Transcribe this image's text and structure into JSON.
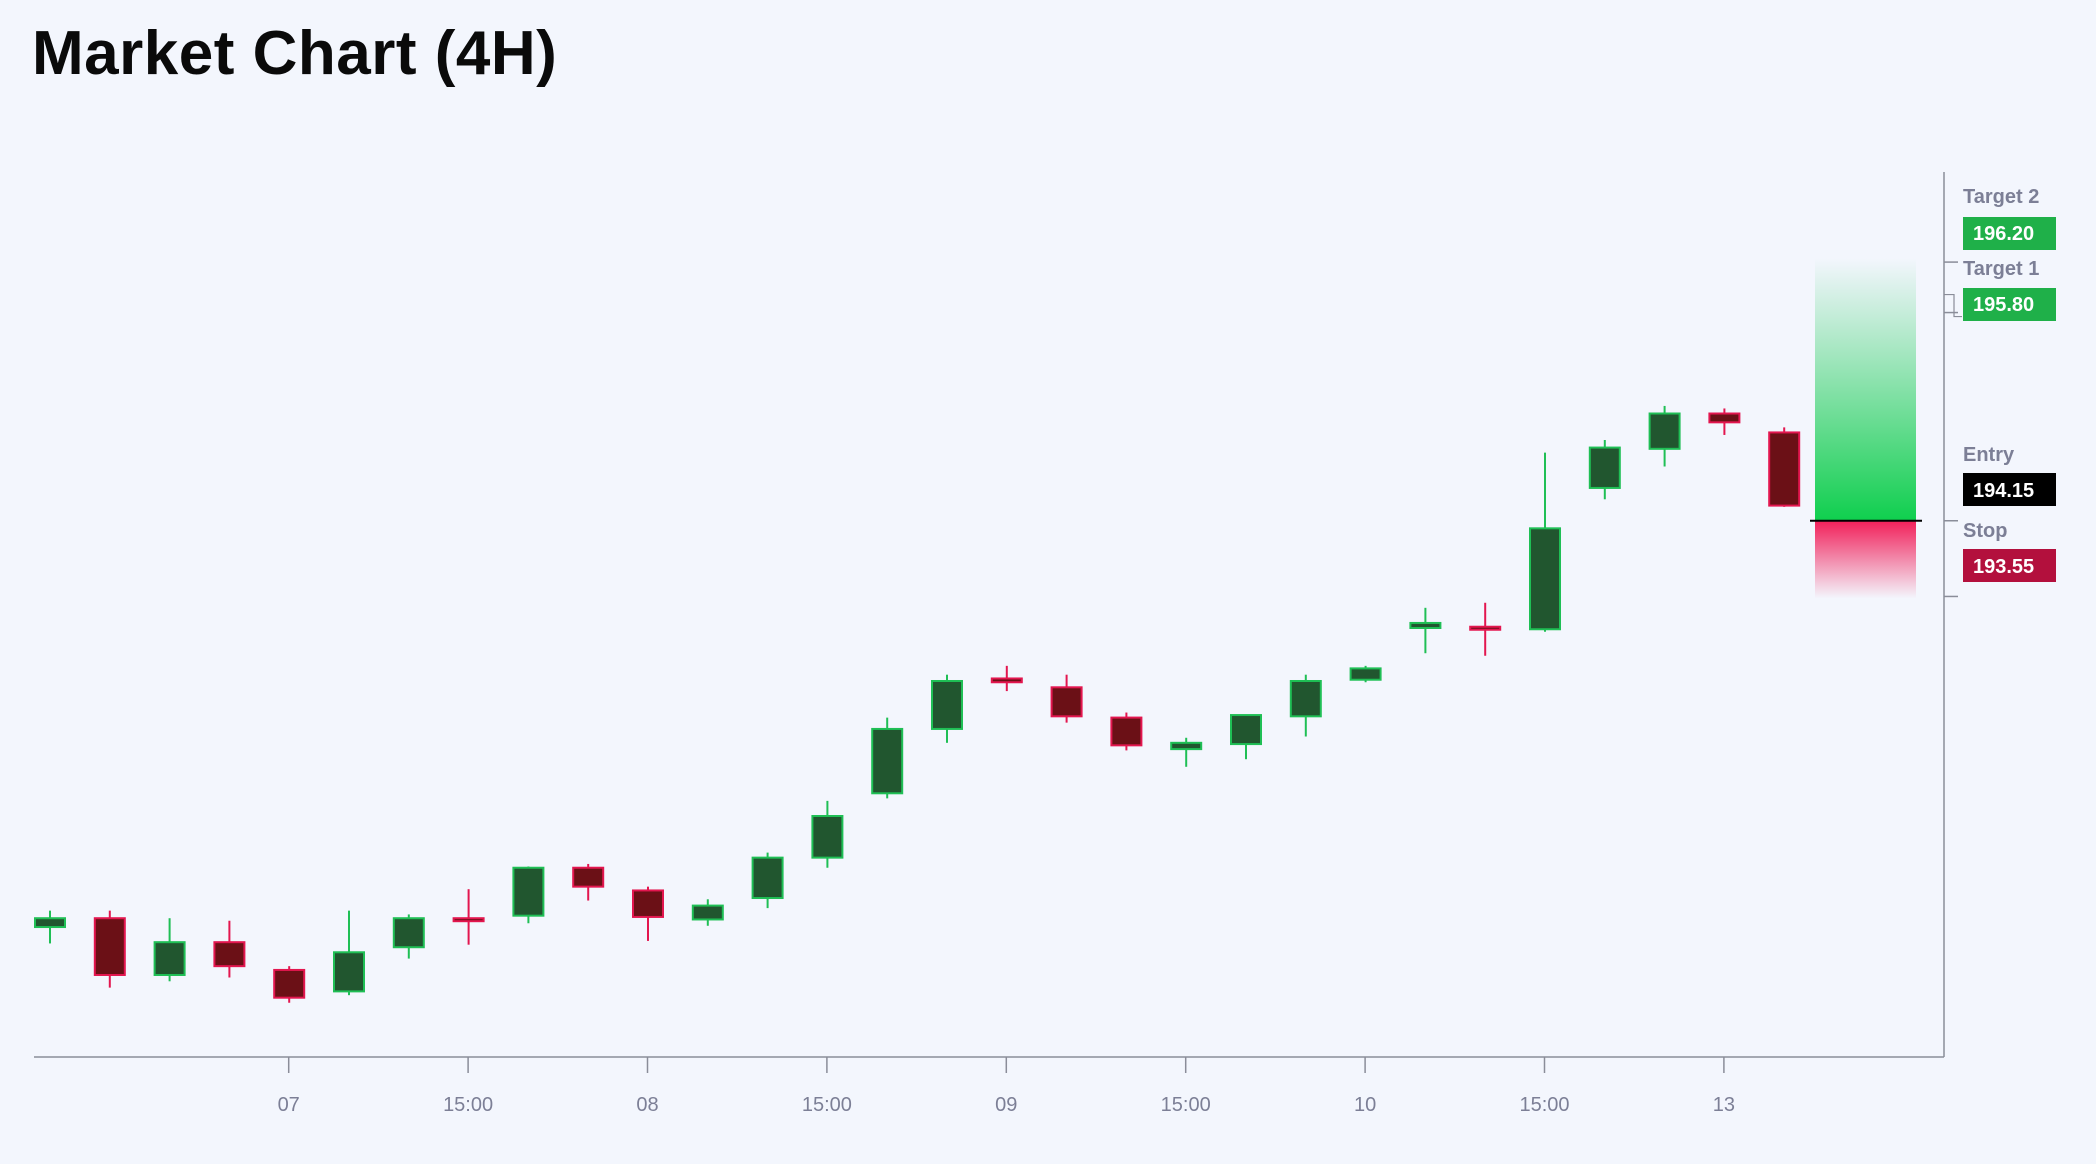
{
  "title": "Market Chart (4H)",
  "colors": {
    "background": "#f3f6fd",
    "up_body": "#21562f",
    "up_outline": "#1fbf55",
    "down_body": "#6b1016",
    "down_outline": "#e3164f",
    "target_badge": "#1fb049",
    "entry_badge": "#000000",
    "stop_badge": "#b3103d",
    "axis": "#8a8d99"
  },
  "chart_data": {
    "type": "candlestick",
    "title": "Market Chart (4H)",
    "xlabel": "",
    "ylabel": "",
    "ylim": [
      189.9,
      196.7
    ],
    "x_tick_labels": [
      "07",
      "15:00",
      "08",
      "15:00",
      "09",
      "15:00",
      "10",
      "15:00",
      "13"
    ],
    "candles": [
      {
        "o": 190.93,
        "h": 191.06,
        "l": 190.8,
        "c": 191.0
      },
      {
        "o": 191.0,
        "h": 191.06,
        "l": 190.45,
        "c": 190.55
      },
      {
        "o": 190.55,
        "h": 191.0,
        "l": 190.5,
        "c": 190.81
      },
      {
        "o": 190.81,
        "h": 190.98,
        "l": 190.53,
        "c": 190.62
      },
      {
        "o": 190.59,
        "h": 190.62,
        "l": 190.33,
        "c": 190.37
      },
      {
        "o": 190.42,
        "h": 191.06,
        "l": 190.39,
        "c": 190.73
      },
      {
        "o": 190.77,
        "h": 191.03,
        "l": 190.68,
        "c": 191.0
      },
      {
        "o": 191.0,
        "h": 191.23,
        "l": 190.79,
        "c": 190.98
      },
      {
        "o": 191.02,
        "h": 191.41,
        "l": 190.96,
        "c": 191.4
      },
      {
        "o": 191.4,
        "h": 191.43,
        "l": 191.14,
        "c": 191.25
      },
      {
        "o": 191.22,
        "h": 191.25,
        "l": 190.82,
        "c": 191.01
      },
      {
        "o": 190.99,
        "h": 191.15,
        "l": 190.94,
        "c": 191.1
      },
      {
        "o": 191.16,
        "h": 191.52,
        "l": 191.08,
        "c": 191.48
      },
      {
        "o": 191.48,
        "h": 191.93,
        "l": 191.4,
        "c": 191.81
      },
      {
        "o": 191.99,
        "h": 192.59,
        "l": 191.95,
        "c": 192.5
      },
      {
        "o": 192.5,
        "h": 192.93,
        "l": 192.39,
        "c": 192.88
      },
      {
        "o": 192.9,
        "h": 193.0,
        "l": 192.8,
        "c": 192.87
      },
      {
        "o": 192.83,
        "h": 192.93,
        "l": 192.55,
        "c": 192.6
      },
      {
        "o": 192.59,
        "h": 192.63,
        "l": 192.33,
        "c": 192.37
      },
      {
        "o": 192.34,
        "h": 192.43,
        "l": 192.2,
        "c": 192.39
      },
      {
        "o": 192.38,
        "h": 192.61,
        "l": 192.26,
        "c": 192.61
      },
      {
        "o": 192.6,
        "h": 192.93,
        "l": 192.44,
        "c": 192.88
      },
      {
        "o": 192.89,
        "h": 193.0,
        "l": 192.87,
        "c": 192.98
      },
      {
        "o": 193.3,
        "h": 193.46,
        "l": 193.1,
        "c": 193.34
      },
      {
        "o": 193.31,
        "h": 193.5,
        "l": 193.08,
        "c": 193.3
      },
      {
        "o": 193.29,
        "h": 194.69,
        "l": 193.27,
        "c": 194.09
      },
      {
        "o": 194.41,
        "h": 194.79,
        "l": 194.32,
        "c": 194.73
      },
      {
        "o": 194.72,
        "h": 195.06,
        "l": 194.58,
        "c": 195.0
      },
      {
        "o": 195.0,
        "h": 195.04,
        "l": 194.83,
        "c": 194.93
      },
      {
        "o": 194.85,
        "h": 194.89,
        "l": 194.26,
        "c": 194.27
      }
    ],
    "levels": [
      {
        "name": "Target 2",
        "price": 196.2,
        "type": "target"
      },
      {
        "name": "Target 1",
        "price": 195.8,
        "type": "target"
      },
      {
        "name": "Entry",
        "price": 194.15,
        "type": "entry"
      },
      {
        "name": "Stop",
        "price": 193.55,
        "type": "stop"
      }
    ],
    "levels_display": {
      "target2_name": "Target 2",
      "target2_price": "196.20",
      "target1_name": "Target 1",
      "target1_price": "195.80",
      "entry_name": "Entry",
      "entry_price": "194.15",
      "stop_name": "Stop",
      "stop_price": "193.55"
    }
  }
}
